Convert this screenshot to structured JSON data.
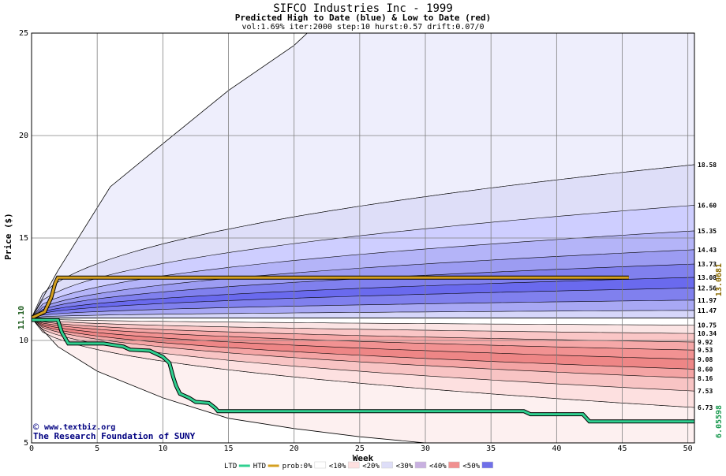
{
  "chart_data": {
    "type": "area",
    "title": "SIFCO Industries Inc - 1999",
    "subtitle": "Predicted High to Date (blue) &  Low to Date (red)",
    "params": "vol:1.69% iter:2000 step:10 hurst:0.57 drift:0.07/0",
    "xlabel": "Week",
    "ylabel": "Price ($)",
    "xlim": [
      0,
      50.5
    ],
    "ylim": [
      5,
      25
    ],
    "x_ticks": [
      0,
      5,
      10,
      15,
      20,
      25,
      30,
      35,
      40,
      45,
      50
    ],
    "y_ticks": [
      5,
      10,
      15,
      20,
      25
    ],
    "grid": true,
    "start_price": 11.1,
    "start_price_label": "11.10",
    "watermark": [
      "www.textbiz.org",
      "The Research Foundation of SUNY"
    ],
    "copyright_symbol": "©",
    "end_labels": [
      "18.58",
      "16.60",
      "15.35",
      "14.43",
      "13.73",
      "13.08",
      "12.56",
      "11.97",
      "11.47",
      "10.75",
      "10.34",
      "9.92",
      "9.53",
      "9.08",
      "8.60",
      "8.16",
      "7.53",
      "6.73"
    ],
    "right_markers": {
      "high_to_date": "13.0681",
      "low_to_date": "6.05598"
    },
    "outer_bounds": {
      "upper": [
        [
          0,
          11.1
        ],
        [
          2,
          13.4
        ],
        [
          6,
          17.5
        ],
        [
          10,
          19.6
        ],
        [
          15,
          22.2
        ],
        [
          20,
          24.4
        ],
        [
          21,
          25
        ]
      ],
      "lower": [
        [
          0,
          11.1
        ],
        [
          2,
          9.7
        ],
        [
          5,
          8.5
        ],
        [
          10,
          7.2
        ],
        [
          15,
          6.2
        ],
        [
          20,
          5.7
        ],
        [
          25,
          5.3
        ],
        [
          30,
          5.0
        ]
      ]
    },
    "band_edges": [
      {
        "end": 18.58,
        "k": 0.8,
        "color": "#dedef8"
      },
      {
        "end": 16.6,
        "k": 0.8,
        "color": "#ceceff"
      },
      {
        "end": 15.35,
        "k": 0.8,
        "color": "#b4b4f8"
      },
      {
        "end": 14.43,
        "k": 0.8,
        "color": "#9c9cf2"
      },
      {
        "end": 13.73,
        "k": 0.8,
        "color": "#8080ee"
      },
      {
        "end": 13.08,
        "k": 0.8,
        "color": "#6a6aee"
      },
      {
        "end": 12.56,
        "k": 0.8,
        "color": "#8080ee"
      },
      {
        "end": 11.97,
        "k": 0.8,
        "color": "#a8a8f4"
      },
      {
        "end": 11.47,
        "k": 0.8,
        "color": "#d6d6fa"
      },
      {
        "end": 10.75,
        "k": 1.2,
        "color": "#ffffff"
      },
      {
        "end": 10.34,
        "k": 1.2,
        "color": "#fbe4e4"
      },
      {
        "end": 9.92,
        "k": 1.2,
        "color": "#fac6c6"
      },
      {
        "end": 9.53,
        "k": 1.2,
        "color": "#f6a8a8"
      },
      {
        "end": 9.08,
        "k": 1.2,
        "color": "#f29292"
      },
      {
        "end": 8.6,
        "k": 1.2,
        "color": "#ee8686"
      },
      {
        "end": 8.16,
        "k": 1.2,
        "color": "#f4a4a4"
      },
      {
        "end": 7.53,
        "k": 1.2,
        "color": "#f8c4c4"
      },
      {
        "end": 6.73,
        "k": 1.2,
        "color": "#fde0e0"
      }
    ],
    "htd_series": [
      [
        0,
        11.1
      ],
      [
        1,
        11.4
      ],
      [
        1.5,
        12.1
      ],
      [
        1.8,
        12.8
      ],
      [
        2,
        13.07
      ],
      [
        45.5,
        13.07
      ]
    ],
    "ltd_series": [
      [
        0,
        11.0
      ],
      [
        2,
        11.0
      ],
      [
        2.3,
        10.4
      ],
      [
        2.8,
        9.85
      ],
      [
        5.5,
        9.85
      ],
      [
        7,
        9.7
      ],
      [
        7.5,
        9.55
      ],
      [
        9,
        9.5
      ],
      [
        10,
        9.2
      ],
      [
        10.5,
        8.9
      ],
      [
        10.8,
        8.2
      ],
      [
        11,
        7.8
      ],
      [
        11.3,
        7.4
      ],
      [
        12,
        7.2
      ],
      [
        12.5,
        7.0
      ],
      [
        13.5,
        6.95
      ],
      [
        14,
        6.7
      ],
      [
        14.2,
        6.55
      ],
      [
        37.5,
        6.55
      ],
      [
        38,
        6.4
      ],
      [
        42,
        6.4
      ],
      [
        42.5,
        6.05
      ],
      [
        51,
        6.05
      ]
    ],
    "legend": [
      {
        "label": "LTD",
        "swatch": "line",
        "color": "#30d090"
      },
      {
        "label": "HTD",
        "swatch": "line",
        "color": "#d4a020"
      },
      {
        "label": "prob:0%",
        "swatch": "box",
        "color": "#ffffff"
      },
      {
        "label": "<10%",
        "swatch": "box",
        "color": "#fde0e0"
      },
      {
        "label": "<20%",
        "swatch": "box",
        "color": "#dedef8"
      },
      {
        "label": "<30%",
        "swatch": "box",
        "color": "#c8b0e0"
      },
      {
        "label": "<40%",
        "swatch": "box",
        "color": "#f09090"
      },
      {
        "label": "<50%",
        "swatch": "box",
        "color": "#7070e8"
      }
    ],
    "colors": {
      "ltd": "#30d090",
      "htd": "#d4a020",
      "grid": "#808080",
      "htd_marker": "#8a6a00",
      "ltd_marker": "#1a9a50",
      "text": "#000000",
      "watermark": "#000080"
    }
  }
}
